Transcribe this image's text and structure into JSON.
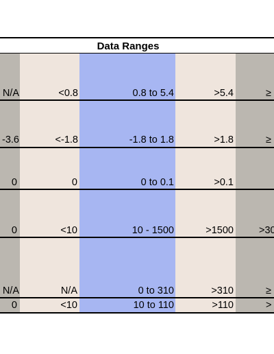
{
  "table": {
    "title": "Data Ranges",
    "rows": [
      [
        "N/A",
        "<0.8",
        "0.8 to 5.4",
        ">5.4",
        "≥"
      ],
      [
        "-3.6",
        "<-1.8",
        "-1.8 to 1.8",
        ">1.8",
        "≥"
      ],
      [
        "0",
        "0",
        "0 to 0.1",
        ">0.1",
        ""
      ],
      [
        "0",
        "<10",
        "10 - 1500",
        ">1500",
        ">30"
      ],
      [
        "N/A",
        "N/A",
        "0 to 310",
        ">310",
        "≥"
      ],
      [
        "0",
        "<10",
        "10 to 110",
        ">110",
        ">"
      ]
    ]
  },
  "colors": {
    "grey": "#bbb7b0",
    "beige": "#efe5dd",
    "blue": "#a7b6f2"
  }
}
